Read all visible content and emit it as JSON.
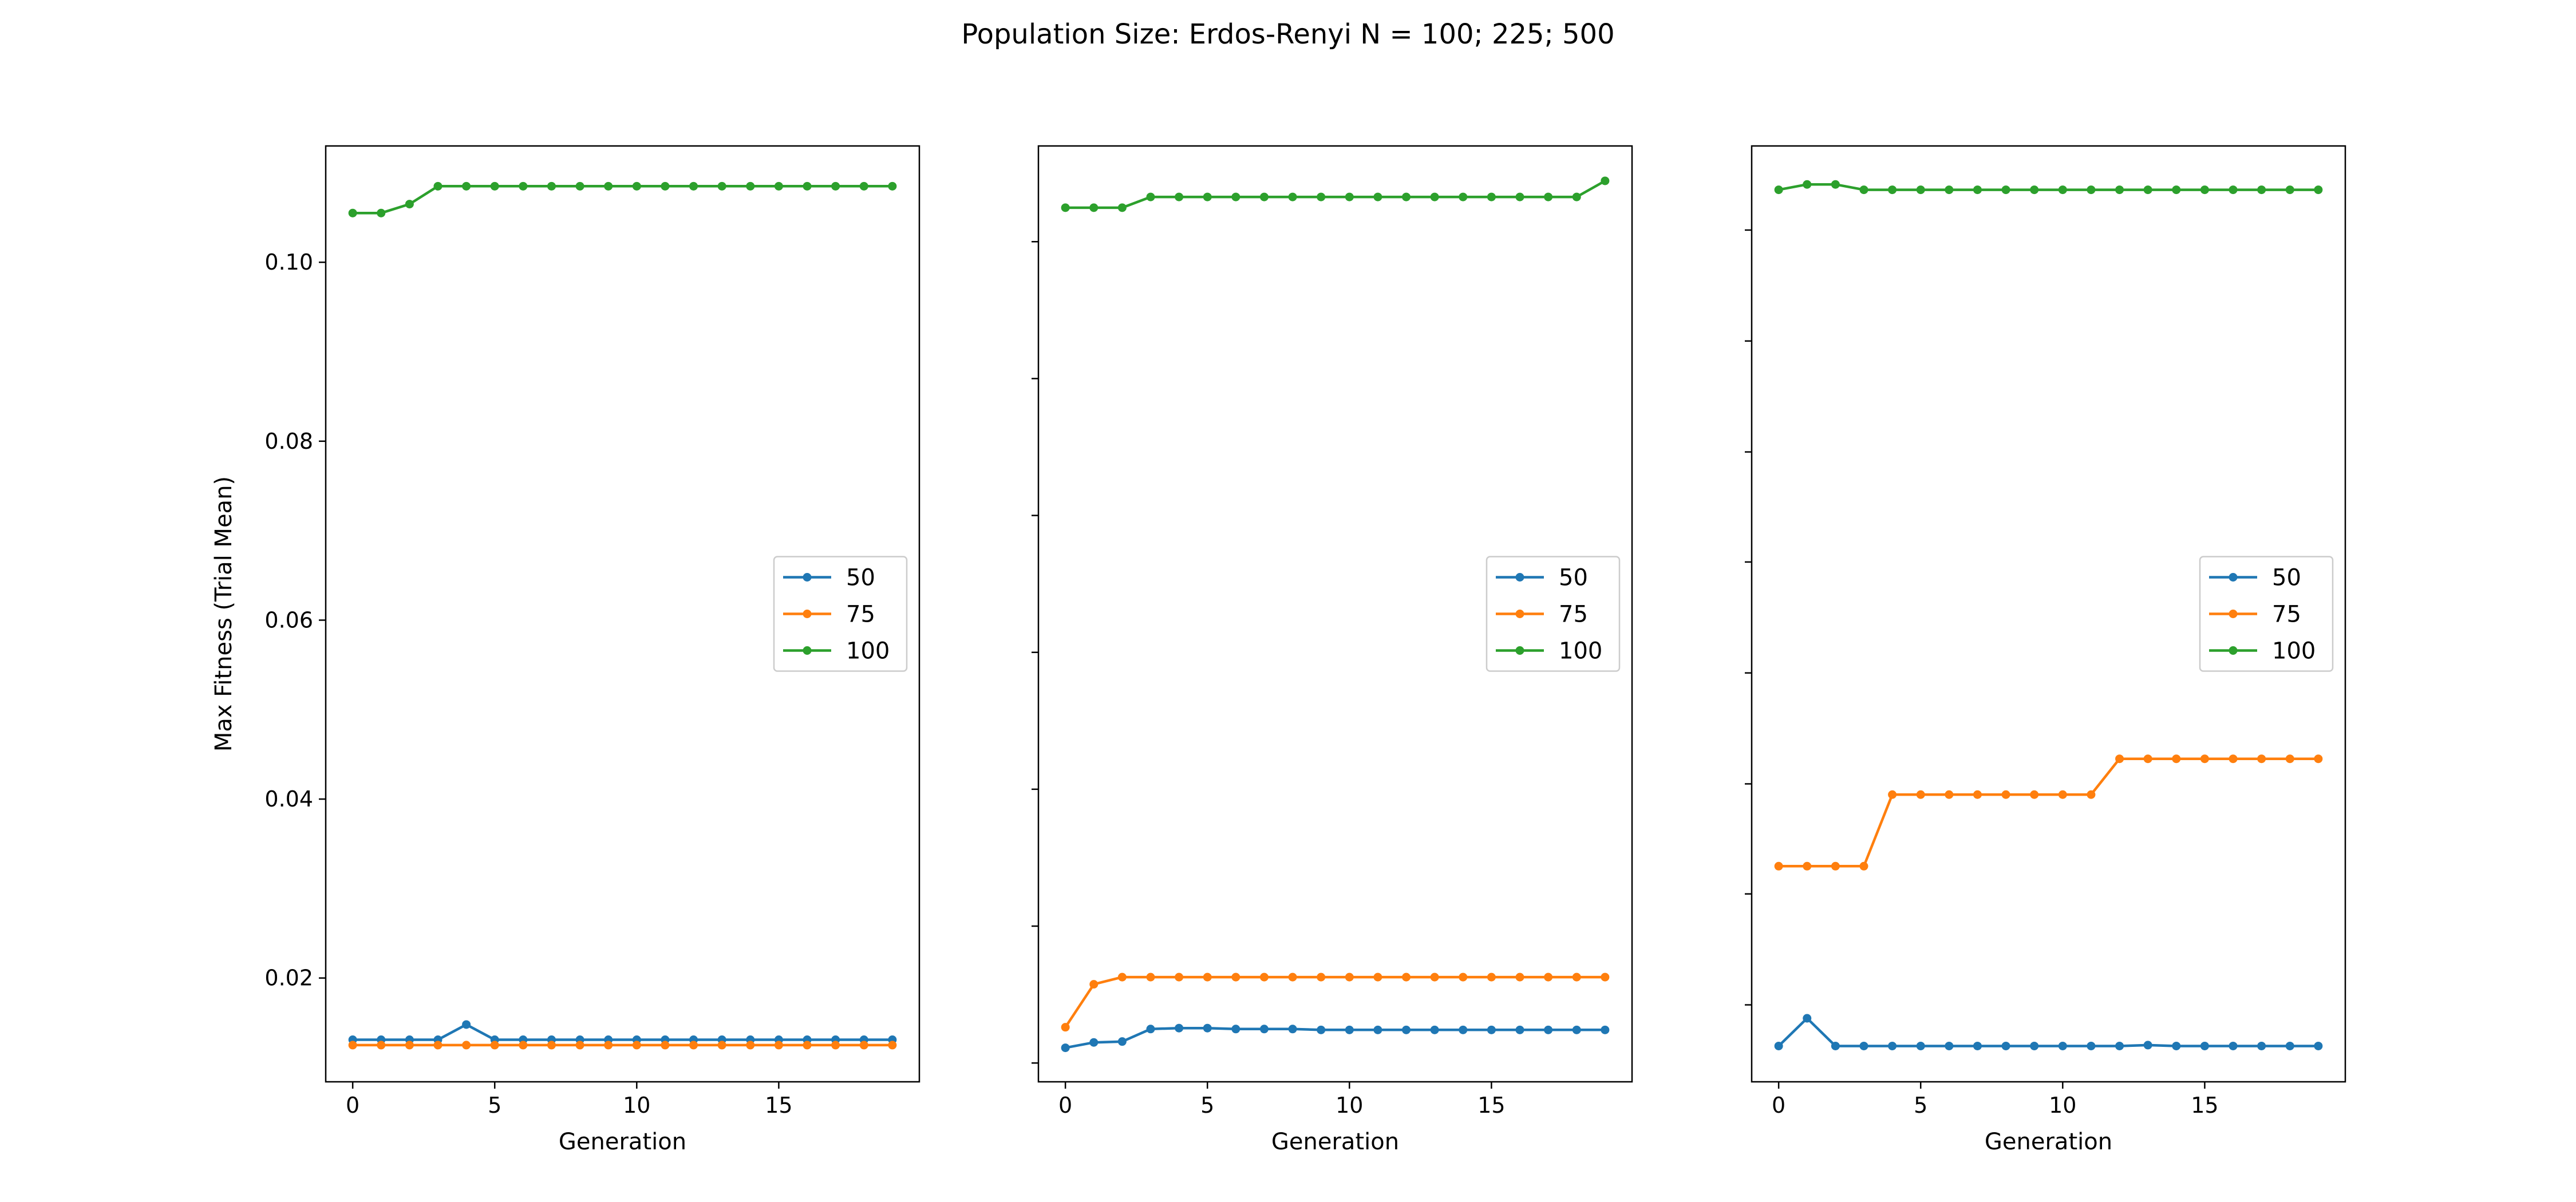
{
  "figure": {
    "title": "Population Size: Erdos-Renyi N = 100; 225; 500"
  },
  "chart_data": [
    {
      "type": "line",
      "xlabel": "Generation",
      "ylabel": "Max Fitness (Trial Mean)",
      "xlim": [
        -0.95,
        19.95
      ],
      "ylim": [
        0.0084,
        0.113
      ],
      "xticks": [
        0,
        5,
        10,
        15
      ],
      "yticks": [
        0.02,
        0.04,
        0.06,
        0.08,
        0.1
      ],
      "yticklabels": [
        "0.02",
        "0.04",
        "0.06",
        "0.08",
        "0.10"
      ],
      "legend_position": "center-right",
      "x": [
        0,
        1,
        2,
        3,
        4,
        5,
        6,
        7,
        8,
        9,
        10,
        11,
        12,
        13,
        14,
        15,
        16,
        17,
        18,
        19
      ],
      "series": [
        {
          "name": "50",
          "color": "#1f77b4",
          "values": [
            0.0131,
            0.0131,
            0.0131,
            0.0131,
            0.0148,
            0.0131,
            0.0131,
            0.0131,
            0.0131,
            0.0131,
            0.0131,
            0.0131,
            0.0131,
            0.0131,
            0.0131,
            0.0131,
            0.0131,
            0.0131,
            0.0131,
            0.0131
          ]
        },
        {
          "name": "75",
          "color": "#ff7f0e",
          "values": [
            0.0125,
            0.0125,
            0.0125,
            0.0125,
            0.0125,
            0.0125,
            0.0125,
            0.0125,
            0.0125,
            0.0125,
            0.0125,
            0.0125,
            0.0125,
            0.0125,
            0.0125,
            0.0125,
            0.0125,
            0.0125,
            0.0125,
            0.0125
          ]
        },
        {
          "name": "100",
          "color": "#2ca02c",
          "values": [
            0.1055,
            0.1055,
            0.1065,
            0.1085,
            0.1085,
            0.1085,
            0.1085,
            0.1085,
            0.1085,
            0.1085,
            0.1085,
            0.1085,
            0.1085,
            0.1085,
            0.1085,
            0.1085,
            0.1085,
            0.1085,
            0.1085,
            0.1085
          ]
        }
      ]
    },
    {
      "type": "line",
      "xlabel": "Generation",
      "ylabel": "",
      "xlim": [
        -0.95,
        19.95
      ],
      "ylim": [
        0.0084,
        0.113
      ],
      "xticks": [
        0,
        5,
        10,
        15
      ],
      "yticks": [
        0.0105,
        0.0258,
        0.0411,
        0.0564,
        0.0717,
        0.087,
        0.1023
      ],
      "yticklabels": [],
      "legend_position": "center-right",
      "x": [
        0,
        1,
        2,
        3,
        4,
        5,
        6,
        7,
        8,
        9,
        10,
        11,
        12,
        13,
        14,
        15,
        16,
        17,
        18,
        19
      ],
      "series": [
        {
          "name": "50",
          "color": "#1f77b4",
          "values": [
            0.0122,
            0.0128,
            0.0129,
            0.0143,
            0.0144,
            0.0144,
            0.0143,
            0.0143,
            0.0143,
            0.0142,
            0.0142,
            0.0142,
            0.0142,
            0.0142,
            0.0142,
            0.0142,
            0.0142,
            0.0142,
            0.0142,
            0.0142
          ]
        },
        {
          "name": "75",
          "color": "#ff7f0e",
          "values": [
            0.0145,
            0.0193,
            0.0201,
            0.0201,
            0.0201,
            0.0201,
            0.0201,
            0.0201,
            0.0201,
            0.0201,
            0.0201,
            0.0201,
            0.0201,
            0.0201,
            0.0201,
            0.0201,
            0.0201,
            0.0201,
            0.0201,
            0.0201
          ]
        },
        {
          "name": "100",
          "color": "#2ca02c",
          "values": [
            0.1061,
            0.1061,
            0.1061,
            0.1073,
            0.1073,
            0.1073,
            0.1073,
            0.1073,
            0.1073,
            0.1073,
            0.1073,
            0.1073,
            0.1073,
            0.1073,
            0.1073,
            0.1073,
            0.1073,
            0.1073,
            0.1073,
            0.1091
          ]
        }
      ]
    },
    {
      "type": "line",
      "xlabel": "Generation",
      "ylabel": "",
      "xlim": [
        -0.95,
        19.95
      ],
      "ylim": [
        0.0084,
        0.113
      ],
      "xticks": [
        0,
        5,
        10,
        15
      ],
      "yticks": [
        0.017,
        0.0294,
        0.0417,
        0.0541,
        0.0665,
        0.0788,
        0.0912,
        0.1036
      ],
      "yticklabels": [],
      "legend_position": "center-right",
      "x": [
        0,
        1,
        2,
        3,
        4,
        5,
        6,
        7,
        8,
        9,
        10,
        11,
        12,
        13,
        14,
        15,
        16,
        17,
        18,
        19
      ],
      "series": [
        {
          "name": "50",
          "color": "#1f77b4",
          "values": [
            0.0124,
            0.0155,
            0.0124,
            0.0124,
            0.0124,
            0.0124,
            0.0124,
            0.0124,
            0.0124,
            0.0124,
            0.0124,
            0.0124,
            0.0124,
            0.0125,
            0.0124,
            0.0124,
            0.0124,
            0.0124,
            0.0124,
            0.0124
          ]
        },
        {
          "name": "75",
          "color": "#ff7f0e",
          "values": [
            0.0325,
            0.0325,
            0.0325,
            0.0325,
            0.0405,
            0.0405,
            0.0405,
            0.0405,
            0.0405,
            0.0405,
            0.0405,
            0.0405,
            0.0445,
            0.0445,
            0.0445,
            0.0445,
            0.0445,
            0.0445,
            0.0445,
            0.0445
          ]
        },
        {
          "name": "100",
          "color": "#2ca02c",
          "values": [
            0.1081,
            0.1087,
            0.1087,
            0.1081,
            0.1081,
            0.1081,
            0.1081,
            0.1081,
            0.1081,
            0.1081,
            0.1081,
            0.1081,
            0.1081,
            0.1081,
            0.1081,
            0.1081,
            0.1081,
            0.1081,
            0.1081,
            0.1081
          ]
        }
      ]
    }
  ]
}
